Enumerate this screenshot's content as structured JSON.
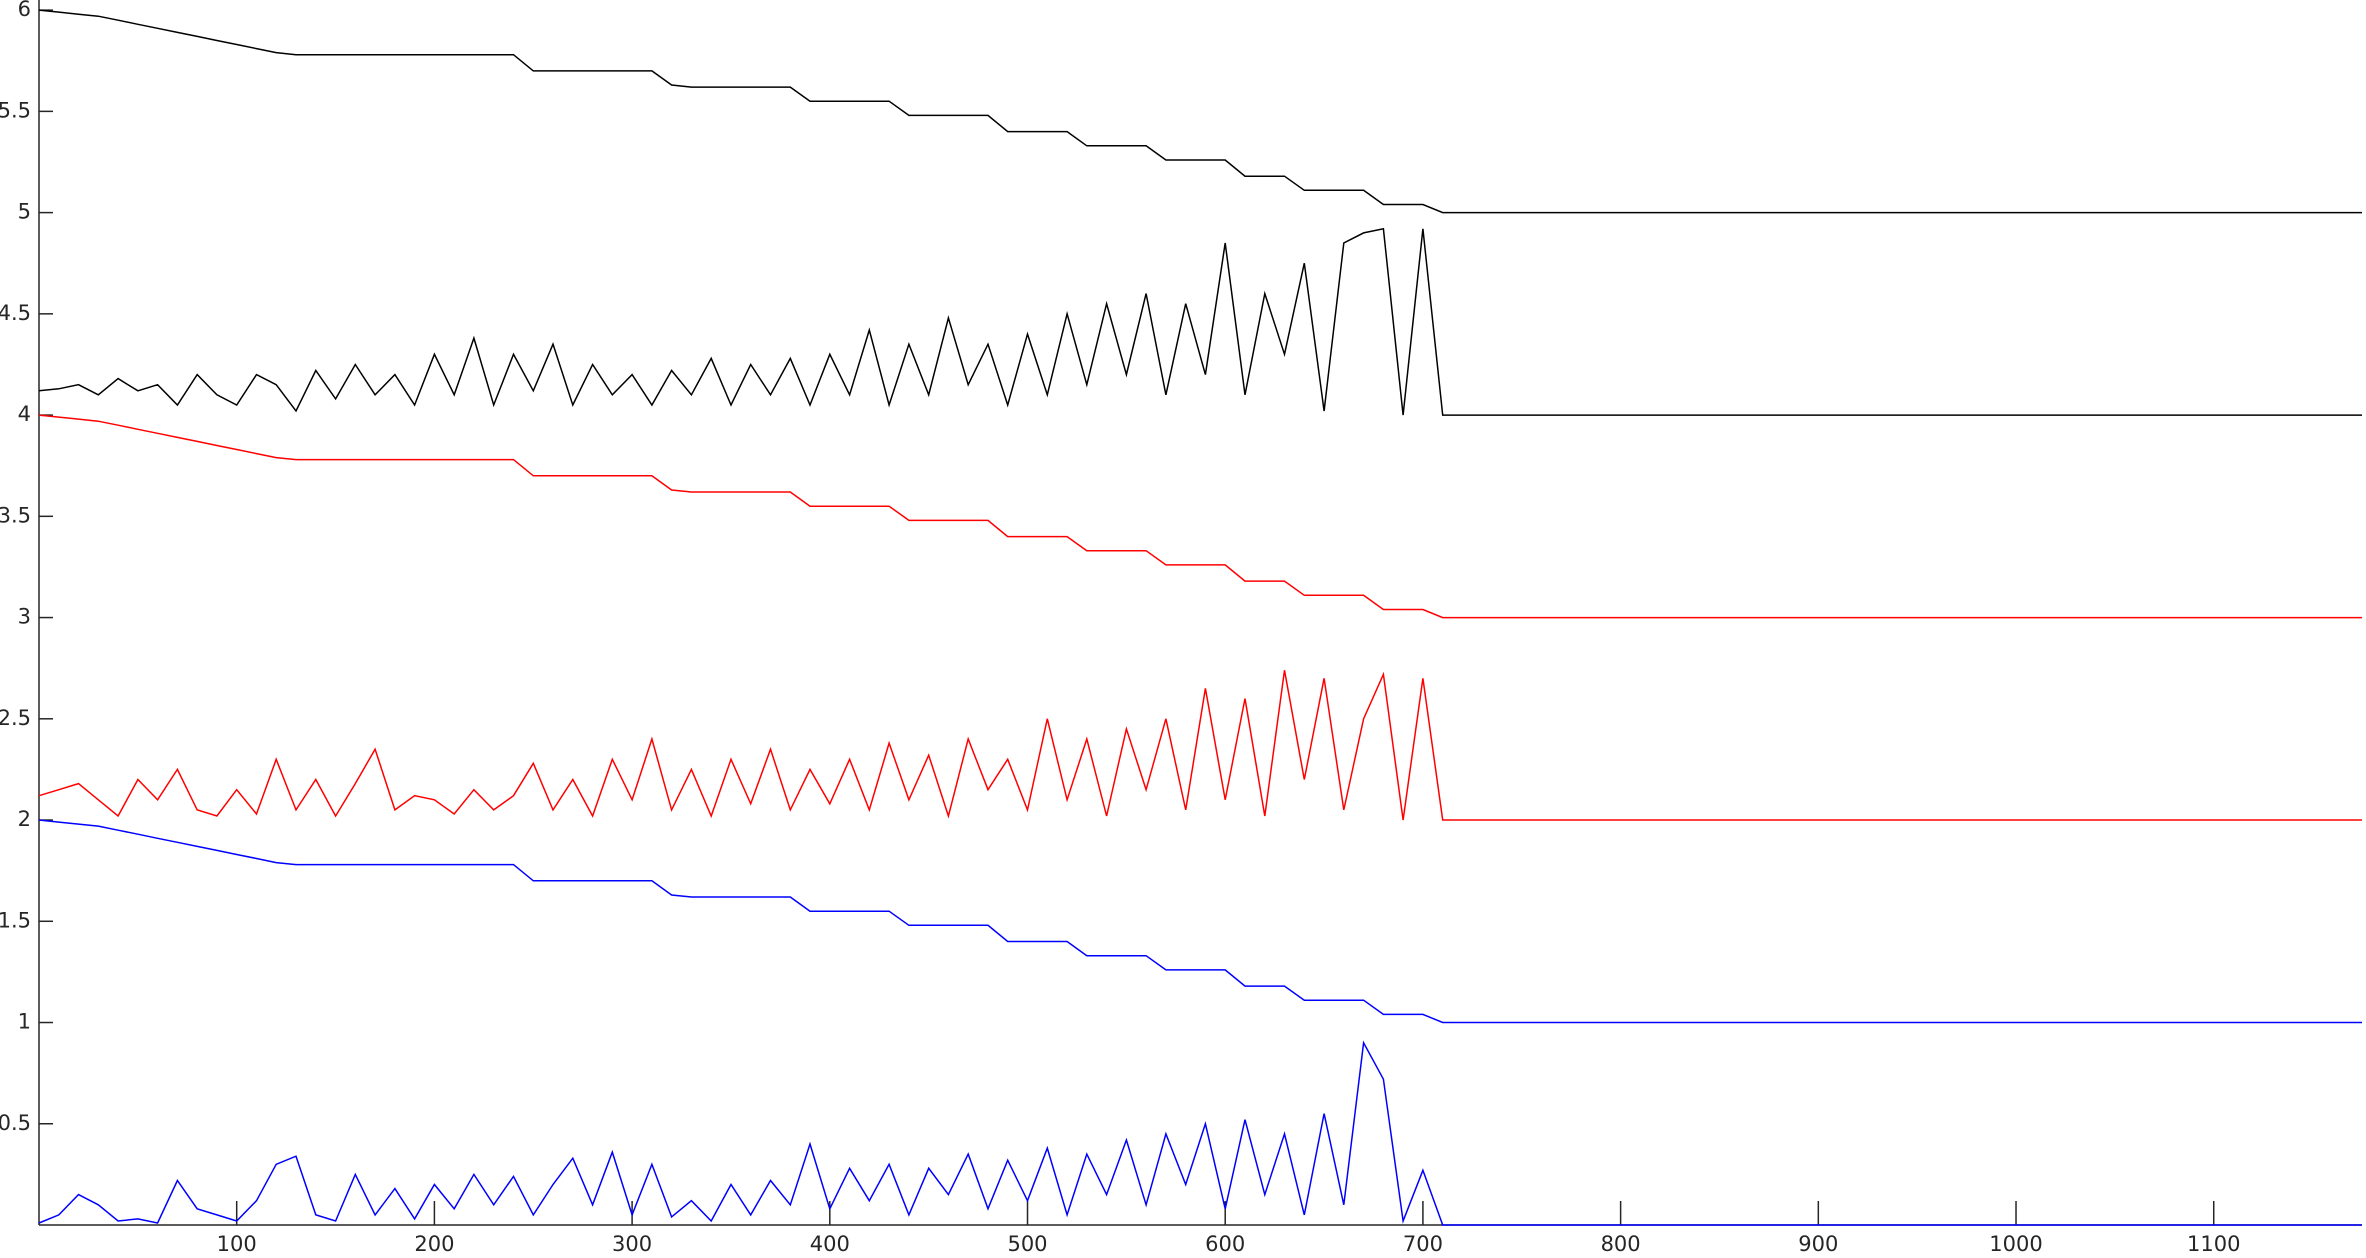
{
  "chart_data": {
    "type": "line",
    "x": [
      0,
      10,
      20,
      30,
      40,
      50,
      60,
      70,
      80,
      90,
      100,
      110,
      120,
      130,
      140,
      150,
      160,
      170,
      180,
      190,
      200,
      210,
      220,
      230,
      240,
      250,
      260,
      270,
      280,
      290,
      300,
      310,
      320,
      330,
      340,
      350,
      360,
      370,
      380,
      390,
      400,
      410,
      420,
      430,
      440,
      450,
      460,
      470,
      480,
      490,
      500,
      510,
      520,
      530,
      540,
      550,
      560,
      570,
      580,
      590,
      600,
      610,
      620,
      630,
      640,
      650,
      660,
      670,
      680,
      690,
      700,
      710,
      1175
    ],
    "series": [
      {
        "color": "#000000",
        "values": [
          6.0,
          5.99,
          5.98,
          5.97,
          5.95,
          5.93,
          5.91,
          5.89,
          5.87,
          5.85,
          5.83,
          5.81,
          5.79,
          5.78,
          5.78,
          5.78,
          5.78,
          5.78,
          5.78,
          5.78,
          5.78,
          5.78,
          5.78,
          5.78,
          5.78,
          5.7,
          5.7,
          5.7,
          5.7,
          5.7,
          5.7,
          5.7,
          5.63,
          5.62,
          5.62,
          5.62,
          5.62,
          5.62,
          5.62,
          5.55,
          5.55,
          5.55,
          5.55,
          5.55,
          5.48,
          5.48,
          5.48,
          5.48,
          5.48,
          5.4,
          5.4,
          5.4,
          5.4,
          5.33,
          5.33,
          5.33,
          5.33,
          5.26,
          5.26,
          5.26,
          5.26,
          5.18,
          5.18,
          5.18,
          5.11,
          5.11,
          5.11,
          5.11,
          5.04,
          5.04,
          5.04,
          5.0,
          5.0
        ]
      },
      {
        "color": "#000000",
        "values": [
          4.12,
          4.13,
          4.15,
          4.1,
          4.18,
          4.12,
          4.15,
          4.05,
          4.2,
          4.1,
          4.05,
          4.2,
          4.15,
          4.02,
          4.22,
          4.08,
          4.25,
          4.1,
          4.2,
          4.05,
          4.3,
          4.1,
          4.38,
          4.05,
          4.3,
          4.12,
          4.35,
          4.05,
          4.25,
          4.1,
          4.2,
          4.05,
          4.22,
          4.1,
          4.28,
          4.05,
          4.25,
          4.1,
          4.28,
          4.05,
          4.3,
          4.1,
          4.42,
          4.05,
          4.35,
          4.1,
          4.48,
          4.15,
          4.35,
          4.05,
          4.4,
          4.1,
          4.5,
          4.15,
          4.55,
          4.2,
          4.6,
          4.1,
          4.55,
          4.2,
          4.85,
          4.1,
          4.6,
          4.3,
          4.75,
          4.02,
          4.85,
          4.9,
          4.92,
          4.0,
          4.92,
          4.0,
          4.0
        ]
      },
      {
        "color": "#ff0000",
        "values": [
          4.0,
          3.99,
          3.98,
          3.97,
          3.95,
          3.93,
          3.91,
          3.89,
          3.87,
          3.85,
          3.83,
          3.81,
          3.79,
          3.78,
          3.78,
          3.78,
          3.78,
          3.78,
          3.78,
          3.78,
          3.78,
          3.78,
          3.78,
          3.78,
          3.78,
          3.7,
          3.7,
          3.7,
          3.7,
          3.7,
          3.7,
          3.7,
          3.63,
          3.62,
          3.62,
          3.62,
          3.62,
          3.62,
          3.62,
          3.55,
          3.55,
          3.55,
          3.55,
          3.55,
          3.48,
          3.48,
          3.48,
          3.48,
          3.48,
          3.4,
          3.4,
          3.4,
          3.4,
          3.33,
          3.33,
          3.33,
          3.33,
          3.26,
          3.26,
          3.26,
          3.26,
          3.18,
          3.18,
          3.18,
          3.11,
          3.11,
          3.11,
          3.11,
          3.04,
          3.04,
          3.04,
          3.0,
          3.0
        ]
      },
      {
        "color": "#ff0000",
        "values": [
          2.12,
          2.15,
          2.18,
          2.1,
          2.02,
          2.2,
          2.1,
          2.25,
          2.05,
          2.02,
          2.15,
          2.03,
          2.3,
          2.05,
          2.2,
          2.02,
          2.18,
          2.35,
          2.05,
          2.12,
          2.1,
          2.03,
          2.15,
          2.05,
          2.12,
          2.28,
          2.05,
          2.2,
          2.02,
          2.3,
          2.1,
          2.4,
          2.05,
          2.25,
          2.02,
          2.3,
          2.08,
          2.35,
          2.05,
          2.25,
          2.08,
          2.3,
          2.05,
          2.38,
          2.1,
          2.32,
          2.02,
          2.4,
          2.15,
          2.3,
          2.05,
          2.5,
          2.1,
          2.4,
          2.02,
          2.45,
          2.15,
          2.5,
          2.05,
          2.65,
          2.1,
          2.6,
          2.02,
          2.74,
          2.2,
          2.7,
          2.05,
          2.5,
          2.72,
          2.0,
          2.7,
          2.0,
          2.0
        ]
      },
      {
        "color": "#0000ff",
        "values": [
          2.0,
          1.99,
          1.98,
          1.97,
          1.95,
          1.93,
          1.91,
          1.89,
          1.87,
          1.85,
          1.83,
          1.81,
          1.79,
          1.78,
          1.78,
          1.78,
          1.78,
          1.78,
          1.78,
          1.78,
          1.78,
          1.78,
          1.78,
          1.78,
          1.78,
          1.7,
          1.7,
          1.7,
          1.7,
          1.7,
          1.7,
          1.7,
          1.63,
          1.62,
          1.62,
          1.62,
          1.62,
          1.62,
          1.62,
          1.55,
          1.55,
          1.55,
          1.55,
          1.55,
          1.48,
          1.48,
          1.48,
          1.48,
          1.48,
          1.4,
          1.4,
          1.4,
          1.4,
          1.33,
          1.33,
          1.33,
          1.33,
          1.26,
          1.26,
          1.26,
          1.26,
          1.18,
          1.18,
          1.18,
          1.11,
          1.11,
          1.11,
          1.11,
          1.04,
          1.04,
          1.04,
          1.0,
          1.0
        ]
      },
      {
        "color": "#0000ff",
        "values": [
          0.01,
          0.05,
          0.15,
          0.1,
          0.02,
          0.03,
          0.01,
          0.22,
          0.08,
          0.05,
          0.02,
          0.12,
          0.3,
          0.34,
          0.05,
          0.02,
          0.25,
          0.05,
          0.18,
          0.03,
          0.2,
          0.08,
          0.25,
          0.1,
          0.24,
          0.05,
          0.2,
          0.33,
          0.1,
          0.36,
          0.05,
          0.3,
          0.04,
          0.12,
          0.02,
          0.2,
          0.05,
          0.22,
          0.1,
          0.4,
          0.08,
          0.28,
          0.12,
          0.3,
          0.05,
          0.28,
          0.15,
          0.35,
          0.08,
          0.32,
          0.12,
          0.38,
          0.05,
          0.35,
          0.15,
          0.42,
          0.1,
          0.45,
          0.2,
          0.5,
          0.08,
          0.52,
          0.15,
          0.45,
          0.05,
          0.55,
          0.1,
          0.9,
          0.72,
          0.02,
          0.27,
          0,
          0
        ]
      }
    ],
    "xlim": [
      0,
      1175
    ],
    "ylim": [
      0,
      6.05
    ],
    "xticks": [
      100,
      200,
      300,
      400,
      500,
      600,
      700,
      800,
      900,
      1000,
      1100
    ],
    "yticks": [
      0.5,
      1,
      1.5,
      2,
      2.5,
      3,
      3.5,
      4,
      4.5,
      5,
      5.5,
      6
    ],
    "grid": false
  }
}
